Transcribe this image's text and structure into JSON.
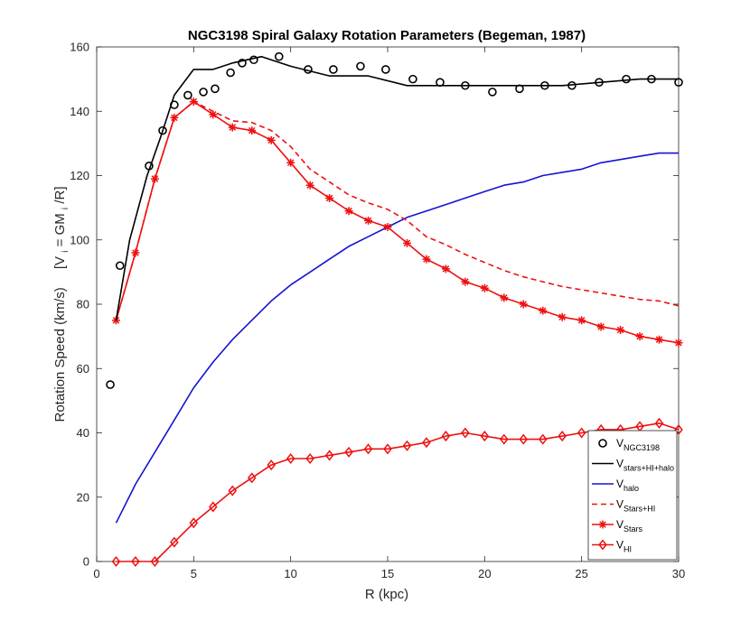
{
  "chart_data": {
    "type": "line",
    "title": "NGC3198 Spiral Galaxy Rotation Parameters (Begeman, 1987)",
    "xlabel": "R (kpc)",
    "ylabel": {
      "main": "Rotation Speed (km/s)",
      "formula_prefix": "[V",
      "sub1": "i",
      "formula_mid": " = GM",
      "sub2": "i",
      "formula_end": "/R]"
    },
    "xlim": [
      0,
      30
    ],
    "ylim": [
      0,
      160
    ],
    "xticks": [
      0,
      5,
      10,
      15,
      20,
      25,
      30
    ],
    "yticks": [
      0,
      20,
      40,
      60,
      80,
      100,
      120,
      140,
      160
    ],
    "grid": false,
    "legend_position": "bottom-right",
    "series": [
      {
        "key": "ngc3198",
        "name": "V",
        "subscript": "NGC3198",
        "color": "#000000",
        "line": "none",
        "marker": "circle",
        "x": [
          0.7,
          1.2,
          2.7,
          3.4,
          4.0,
          4.7,
          5.5,
          6.1,
          6.9,
          7.5,
          8.1,
          9.4,
          10.9,
          12.2,
          13.6,
          14.9,
          16.3,
          17.7,
          19.0,
          20.4,
          21.8,
          23.1,
          24.5,
          25.9,
          27.3,
          28.6,
          30.0
        ],
        "y": [
          55,
          92,
          123,
          134,
          142,
          145,
          146,
          147,
          152,
          155,
          156,
          157,
          153,
          153,
          154,
          153,
          150,
          149,
          148,
          146,
          147,
          148,
          148,
          149,
          150,
          150,
          149
        ]
      },
      {
        "key": "total",
        "name": "V",
        "subscript": "stars+HI+halo",
        "color": "#000000",
        "line": "solid",
        "marker": "none",
        "x": [
          1,
          1.7,
          2.6,
          3.3,
          4,
          5,
          6,
          7,
          8.5,
          10,
          12,
          14,
          16,
          18,
          20,
          22,
          24,
          26,
          28,
          30
        ],
        "y": [
          75,
          100,
          120,
          132,
          145,
          153,
          153,
          155,
          157,
          154,
          151,
          151,
          148,
          148,
          148,
          148,
          148,
          149,
          150,
          150
        ]
      },
      {
        "key": "halo",
        "name": "V",
        "subscript": "halo",
        "color": "#1414d2",
        "line": "solid",
        "marker": "none",
        "x": [
          1,
          2,
          3,
          4,
          5,
          6,
          7,
          8,
          9,
          10,
          11,
          12,
          13,
          14,
          15,
          16,
          17,
          18,
          19,
          20,
          21,
          22,
          23,
          24,
          25,
          26,
          27,
          28,
          29,
          30
        ],
        "y": [
          12,
          24,
          34,
          44,
          54,
          62,
          69,
          75,
          81,
          86,
          90,
          94,
          98,
          101,
          104,
          107,
          109,
          111,
          113,
          115,
          117,
          118,
          120,
          121,
          122,
          124,
          125,
          126,
          127,
          127
        ]
      },
      {
        "key": "stars_hi",
        "name": "V",
        "subscript": "Stars+HI",
        "color": "#ee1111",
        "line": "dashed",
        "marker": "none",
        "x": [
          1,
          2,
          3,
          4,
          5,
          6,
          7,
          8,
          9,
          10,
          11,
          12,
          13,
          14,
          15,
          16,
          17,
          18,
          19,
          20,
          21,
          22,
          23,
          24,
          25,
          26,
          27,
          28,
          29,
          30
        ],
        "y": [
          75,
          96,
          119,
          138,
          143,
          140,
          137,
          136.5,
          134,
          129,
          122,
          118,
          114,
          111.5,
          109.5,
          106,
          101,
          98.5,
          95.5,
          93,
          90.5,
          88.5,
          87,
          85.5,
          84.5,
          83.5,
          82.5,
          81.5,
          81,
          79.5
        ]
      },
      {
        "key": "stars",
        "name": "V",
        "subscript": "Stars",
        "color": "#ee1111",
        "line": "solid",
        "marker": "asterisk",
        "x": [
          1,
          2,
          3,
          4,
          5,
          6,
          7,
          8,
          9,
          10,
          11,
          12,
          13,
          14,
          15,
          16,
          17,
          18,
          19,
          20,
          21,
          22,
          23,
          24,
          25,
          26,
          27,
          28,
          29,
          30
        ],
        "y": [
          75,
          96,
          119,
          138,
          143,
          139,
          135,
          134,
          131,
          124,
          117,
          113,
          109,
          106,
          104,
          99,
          94,
          91,
          87,
          85,
          82,
          80,
          78,
          76,
          75,
          73,
          72,
          70,
          69,
          68
        ]
      },
      {
        "key": "hi",
        "name": "V",
        "subscript": "HI",
        "color": "#ee1111",
        "line": "solid",
        "marker": "diamond",
        "x": [
          1,
          2,
          3,
          4,
          5,
          6,
          7,
          8,
          9,
          10,
          11,
          12,
          13,
          14,
          15,
          16,
          17,
          18,
          19,
          20,
          21,
          22,
          23,
          24,
          25,
          26,
          27,
          28,
          29,
          30
        ],
        "y": [
          0,
          0,
          0,
          6,
          12,
          17,
          22,
          26,
          30,
          32,
          32,
          33,
          34,
          35,
          35,
          36,
          37,
          39,
          40,
          39,
          38,
          38,
          38,
          39,
          40,
          41,
          41,
          42,
          43,
          41
        ]
      }
    ]
  }
}
